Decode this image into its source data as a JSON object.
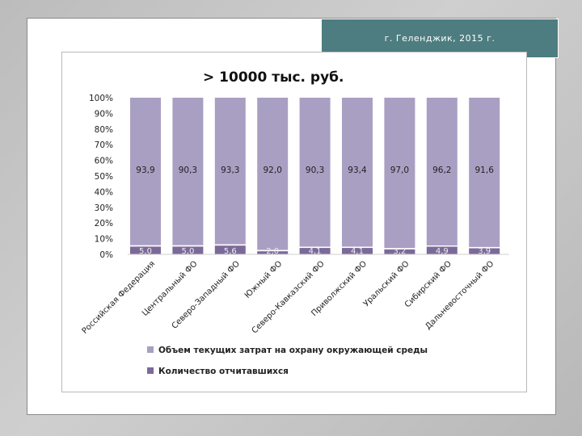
{
  "header": {
    "caption": "г. Геленджик, 2015 г."
  },
  "chart_data": {
    "type": "bar",
    "stacked": true,
    "normalized_percent": true,
    "title": "> 10000 тыс. руб.",
    "categories": [
      "Российская Федерация",
      "Центральный ФО",
      "Северо-Западный ФО",
      "Южный ФО",
      "Северо-Кавказский ФО",
      "Приволжский ФО",
      "Уральский ФО",
      "Сибирский ФО",
      "Дальневосточный ФО"
    ],
    "series": [
      {
        "name": "Количество отчитавшихся",
        "color": "#7b6a99",
        "values": [
          5.0,
          5.0,
          5.6,
          2.0,
          4.1,
          4.1,
          3.2,
          4.9,
          3.9
        ],
        "labels": [
          "5,0",
          "5,0",
          "5,6",
          "2,0",
          "4,1",
          "4,1",
          "3,2",
          "4,9",
          "3,9"
        ]
      },
      {
        "name": "Объем текущих затрат на охрану окружающей среды",
        "color": "#a99fc3",
        "values": [
          93.9,
          90.3,
          93.3,
          92.0,
          90.3,
          93.4,
          97.0,
          96.2,
          91.6
        ],
        "labels": [
          "93,9",
          "90,3",
          "93,3",
          "92,0",
          "90,3",
          "93,4",
          "97,0",
          "96,2",
          "91,6"
        ]
      }
    ],
    "ylim": [
      0,
      100
    ],
    "yticks": [
      "0%",
      "10%",
      "20%",
      "30%",
      "40%",
      "50%",
      "60%",
      "70%",
      "80%",
      "90%",
      "100%"
    ],
    "grid": false,
    "legend_position": "bottom"
  }
}
